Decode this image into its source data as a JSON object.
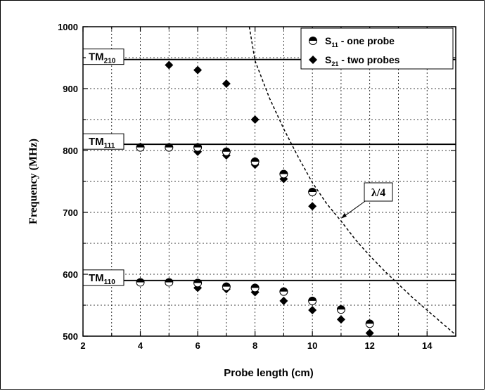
{
  "chart_data": {
    "type": "scatter",
    "xlabel": "Probe length (cm)",
    "ylabel": "Frequency (MHz)",
    "xlim": [
      2,
      15
    ],
    "ylim": [
      500,
      1000
    ],
    "x_ticks": [
      "2",
      "4",
      "6",
      "8",
      "10",
      "12",
      "14"
    ],
    "y_ticks": [
      "500",
      "600",
      "700",
      "800",
      "900",
      "1000"
    ],
    "grid": true,
    "legend_position": "top-right",
    "series": [
      {
        "name_main": "S",
        "name_sub": "11",
        "name_rest": " - one probe",
        "marker": "half-filled-circle",
        "x": [
          4,
          5,
          6,
          7,
          8,
          9,
          10,
          11,
          12
        ],
        "y": [
          805,
          805,
          805,
          798,
          782,
          762,
          733,
          543,
          520
        ]
      },
      {
        "name_main": "S",
        "name_sub": "21",
        "name_rest": " - two probes",
        "marker": "filled-diamond",
        "x": [
          5,
          6,
          7,
          8,
          6,
          7,
          8,
          9,
          10,
          6,
          7,
          8,
          9,
          10,
          11,
          12
        ],
        "y": [
          938,
          930,
          908,
          850,
          798,
          792,
          777,
          754,
          710,
          578,
          576,
          571,
          557,
          542,
          527,
          505
        ]
      },
      {
        "name_main": "",
        "name_sub": "",
        "name_rest": "",
        "marker": "half-filled-circle",
        "x": [
          4,
          5,
          6,
          7,
          8,
          9,
          10
        ],
        "y": [
          587,
          587,
          586,
          580,
          578,
          572,
          557
        ]
      }
    ],
    "reference_lines": [
      {
        "label_main": "TM",
        "label_sub": "210",
        "y": 947
      },
      {
        "label_main": "TM",
        "label_sub": "111",
        "y": 810
      },
      {
        "label_main": "TM",
        "label_sub": "110",
        "y": 590
      }
    ],
    "curve": {
      "label": "λ/4",
      "style": "dashed",
      "x": [
        7.8,
        8.0,
        8.5,
        9.0,
        9.5,
        10.0,
        10.5,
        11.0,
        11.5,
        12.0,
        12.5,
        13.0,
        13.5,
        14.0,
        14.5,
        15.0
      ],
      "y": [
        1000,
        945,
        885,
        835,
        790,
        748,
        714,
        686,
        656,
        630,
        606,
        584,
        562,
        542,
        522,
        502
      ],
      "annotation_arrow_to": [
        11,
        690
      ]
    },
    "colors": {
      "markers": "#000000",
      "grid": "#000000",
      "background": "#ffffff"
    }
  }
}
